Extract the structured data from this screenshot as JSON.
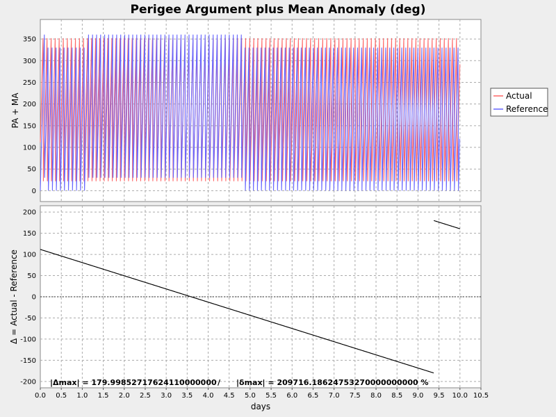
{
  "chart_data": [
    {
      "type": "line",
      "title": "Perigee Argument plus Mean Anomaly (deg)",
      "ylabel": "PA + MA",
      "xlim": [
        0,
        10.5
      ],
      "ylim": [
        -25,
        395
      ],
      "yticks": [
        0,
        50,
        100,
        150,
        200,
        250,
        300,
        350
      ],
      "grid": true,
      "legend_placement": "right",
      "series": [
        {
          "name": "Actual",
          "color": "#ff6666",
          "period_days": 0.0966,
          "min": 0,
          "max": 360,
          "x_range": [
            0,
            10
          ]
        },
        {
          "name": "Reference",
          "color": "#6666ff",
          "period_days": 0.0958,
          "min": 0,
          "max": 360,
          "x_range": [
            0,
            10
          ]
        }
      ]
    },
    {
      "type": "line",
      "xlabel": "days",
      "ylabel": "Δ = Actual - Reference",
      "xlim": [
        0,
        10.5
      ],
      "ylim": [
        -215,
        215
      ],
      "xticks": [
        0.0,
        0.5,
        1.0,
        1.5,
        2.0,
        2.5,
        3.0,
        3.5,
        4.0,
        4.5,
        5.0,
        5.5,
        6.0,
        6.5,
        7.0,
        7.5,
        8.0,
        8.5,
        9.0,
        9.5,
        10.0,
        10.5
      ],
      "yticks": [
        -200,
        -150,
        -100,
        -50,
        0,
        50,
        100,
        150,
        200
      ],
      "grid": true,
      "series": [
        {
          "name": "",
          "color": "#000000",
          "min": -180,
          "max": 180,
          "x_range": [
            0,
            10
          ]
        }
      ],
      "annotation": {
        "abs_delta_max": "|Δmax| = 179.99852717624110000000",
        "separator": "/",
        "rel_delta_max": "|δmax| = 209716.18624753270000000000 %"
      }
    }
  ]
}
